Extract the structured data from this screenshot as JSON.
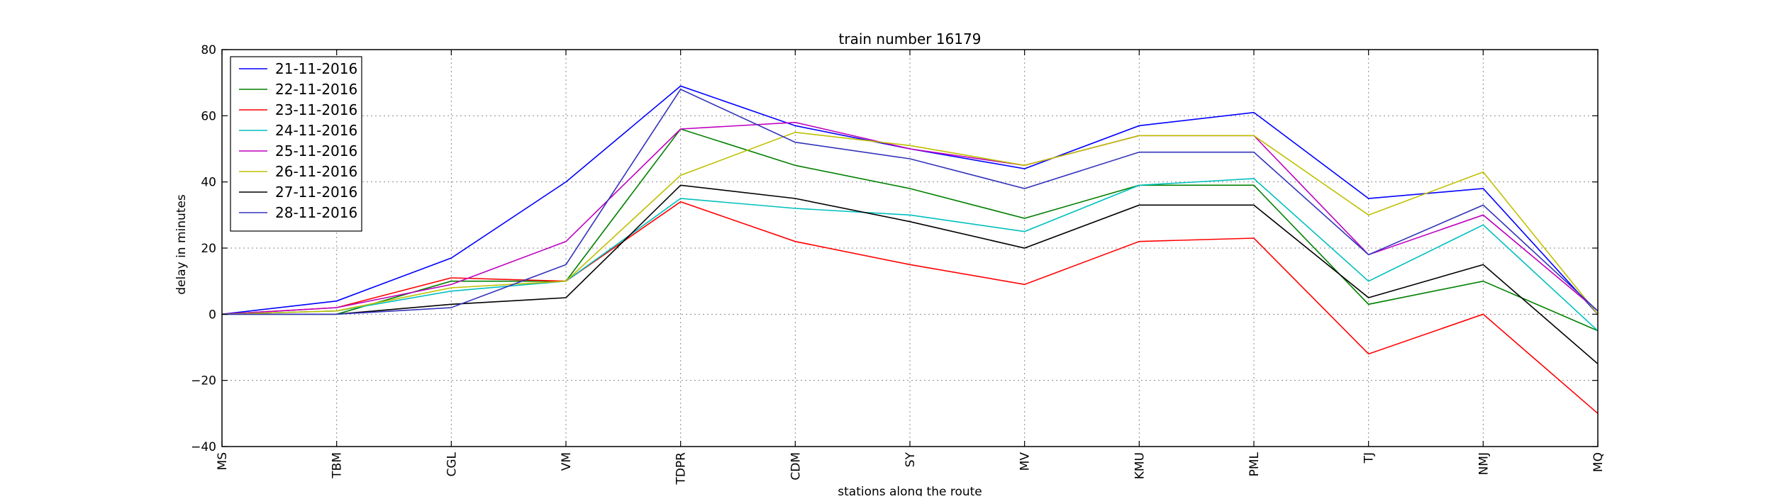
{
  "chart_data": {
    "type": "line",
    "title": "train number 16179",
    "xlabel": "stations along the route",
    "ylabel": "delay in minutes",
    "ylim": [
      -40,
      80
    ],
    "yticks": [
      -40,
      -20,
      0,
      20,
      40,
      60,
      80
    ],
    "ytick_labels": [
      "−40",
      "−20",
      "0",
      "20",
      "40",
      "60",
      "80"
    ],
    "grid": true,
    "legend_position": "top-left",
    "categories": [
      "MS",
      "TBM",
      "CGL",
      "VM",
      "TDPR",
      "CDM",
      "SY",
      "MV",
      "KMU",
      "PML",
      "TJ",
      "NMJ",
      "MQ"
    ],
    "series": [
      {
        "name": "21-11-2016",
        "color": "#0000ff",
        "values": [
          0,
          4,
          17,
          40,
          69,
          57,
          50,
          44,
          57,
          61,
          35,
          38,
          0
        ]
      },
      {
        "name": "22-11-2016",
        "color": "#008000",
        "values": [
          0,
          0,
          10,
          10,
          56,
          45,
          38,
          29,
          39,
          39,
          3,
          10,
          -5
        ]
      },
      {
        "name": "23-11-2016",
        "color": "#ff0000",
        "values": [
          0,
          2,
          11,
          10,
          34,
          22,
          15,
          9,
          22,
          23,
          -12,
          0,
          -30
        ]
      },
      {
        "name": "24-11-2016",
        "color": "#00bfbf",
        "values": [
          0,
          1,
          7,
          10,
          35,
          32,
          30,
          25,
          39,
          41,
          10,
          27,
          -5
        ]
      },
      {
        "name": "25-11-2016",
        "color": "#bf00bf",
        "values": [
          0,
          2,
          9,
          22,
          56,
          58,
          50,
          45,
          54,
          54,
          18,
          30,
          1
        ]
      },
      {
        "name": "26-11-2016",
        "color": "#bfbf00",
        "values": [
          0,
          1,
          8,
          10,
          42,
          55,
          51,
          45,
          54,
          54,
          30,
          43,
          0
        ]
      },
      {
        "name": "27-11-2016",
        "color": "#000000",
        "values": [
          0,
          0,
          3,
          5,
          39,
          35,
          28,
          20,
          33,
          33,
          5,
          15,
          -15
        ]
      },
      {
        "name": "28-11-2016",
        "color": "#3333bb",
        "values": [
          0,
          0,
          2,
          15,
          68,
          52,
          47,
          38,
          49,
          49,
          18,
          33,
          1
        ]
      }
    ]
  }
}
